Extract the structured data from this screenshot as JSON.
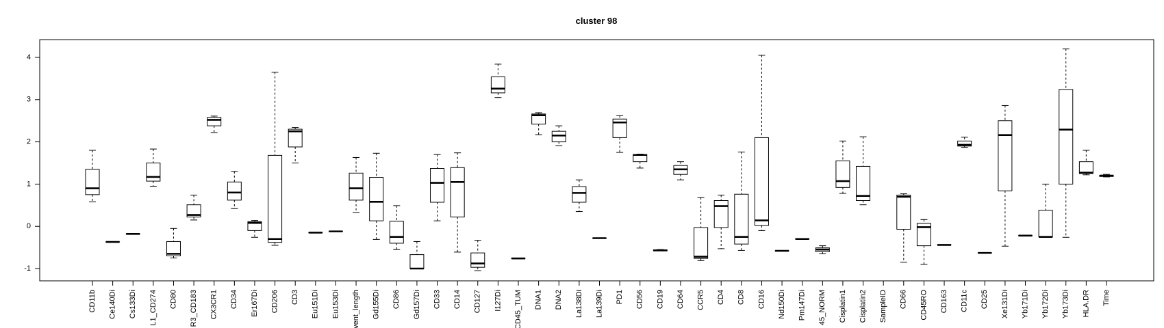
{
  "chart_data": {
    "type": "box",
    "title": "cluster 98",
    "xlabel": "",
    "ylabel": "",
    "ylim": [
      -1.25,
      4.3
    ],
    "yticks": [
      -1,
      0,
      1,
      2,
      3,
      4
    ],
    "grid": false,
    "legend": "none",
    "categories": [
      "CD11b",
      "Ce140Di",
      "Cs133Di",
      "L1_CD274",
      "CD80",
      "R3_CD183",
      "CX3CR1",
      "CD34",
      "Er167Di",
      "CD206",
      "CD3",
      "Eu151Di",
      "Eu153Di",
      "vent_length",
      "Gd155Di",
      "CD86",
      "Gd157Di",
      "CD33",
      "CD14",
      "CD127",
      "I127Di",
      "CD45_TUM",
      "DNA1",
      "DNA2",
      "La138Di",
      "La139Di",
      "PD1",
      "CD56",
      "CD19",
      "CD64",
      "CCR5",
      "CD4",
      "CD8",
      "CD16",
      "Nd150Di",
      "Pm147Di",
      "45_NORM",
      "Cisplatin1",
      "Cisplatin2",
      "SampleID",
      "CD66",
      "CD45RO",
      "CD163",
      "CD11c",
      "CD25",
      "Xe131Di",
      "Yb171Di",
      "Yb172Di",
      "Yb173Di",
      "HLA.DR",
      "Time"
    ],
    "boxes": [
      {
        "min": 0.58,
        "q1": 0.75,
        "median": 0.9,
        "q3": 1.35,
        "max": 1.8
      },
      {
        "min": -0.37,
        "q1": -0.37,
        "median": -0.37,
        "q3": -0.37,
        "max": -0.37
      },
      {
        "min": -0.18,
        "q1": -0.18,
        "median": -0.18,
        "q3": -0.18,
        "max": -0.18
      },
      {
        "min": 0.95,
        "q1": 1.07,
        "median": 1.17,
        "q3": 1.5,
        "max": 1.83
      },
      {
        "min": -0.75,
        "q1": -0.7,
        "median": -0.65,
        "q3": -0.36,
        "max": -0.05
      },
      {
        "min": 0.15,
        "q1": 0.22,
        "median": 0.27,
        "q3": 0.51,
        "max": 0.74
      },
      {
        "min": 2.22,
        "q1": 2.38,
        "median": 2.52,
        "q3": 2.58,
        "max": 2.61
      },
      {
        "min": 0.42,
        "q1": 0.62,
        "median": 0.8,
        "q3": 1.05,
        "max": 1.3
      },
      {
        "min": -0.26,
        "q1": -0.1,
        "median": 0.08,
        "q3": 0.11,
        "max": 0.14
      },
      {
        "min": -0.45,
        "q1": -0.38,
        "median": -0.3,
        "q3": 1.68,
        "max": 3.65
      },
      {
        "min": 1.5,
        "q1": 1.88,
        "median": 2.25,
        "q3": 2.3,
        "max": 2.34
      },
      {
        "min": -0.15,
        "q1": -0.15,
        "median": -0.15,
        "q3": -0.15,
        "max": -0.15
      },
      {
        "min": -0.12,
        "q1": -0.12,
        "median": -0.12,
        "q3": -0.12,
        "max": -0.12
      },
      {
        "min": 0.33,
        "q1": 0.62,
        "median": 0.9,
        "q3": 1.26,
        "max": 1.63
      },
      {
        "min": -0.31,
        "q1": 0.13,
        "median": 0.58,
        "q3": 1.16,
        "max": 1.73
      },
      {
        "min": -0.55,
        "q1": -0.4,
        "median": -0.25,
        "q3": 0.12,
        "max": 0.49
      },
      {
        "min": -1.0,
        "q1": -1.0,
        "median": -1.0,
        "q3": -0.67,
        "max": -0.36
      },
      {
        "min": 0.13,
        "q1": 0.57,
        "median": 1.03,
        "q3": 1.37,
        "max": 1.7
      },
      {
        "min": -0.61,
        "q1": 0.22,
        "median": 1.05,
        "q3": 1.39,
        "max": 1.74
      },
      {
        "min": -1.05,
        "q1": -0.97,
        "median": -0.88,
        "q3": -0.63,
        "max": -0.33
      },
      {
        "min": 3.05,
        "q1": 3.16,
        "median": 3.26,
        "q3": 3.54,
        "max": 3.84
      },
      {
        "min": -0.76,
        "q1": -0.76,
        "median": -0.76,
        "q3": -0.76,
        "max": -0.76
      },
      {
        "min": 2.17,
        "q1": 2.42,
        "median": 2.63,
        "q3": 2.66,
        "max": 2.69
      },
      {
        "min": 1.91,
        "q1": 2.0,
        "median": 2.15,
        "q3": 2.25,
        "max": 2.38
      },
      {
        "min": 0.35,
        "q1": 0.57,
        "median": 0.79,
        "q3": 0.94,
        "max": 1.1
      },
      {
        "min": -0.28,
        "q1": -0.28,
        "median": -0.28,
        "q3": -0.28,
        "max": -0.28
      },
      {
        "min": 1.75,
        "q1": 2.1,
        "median": 2.46,
        "q3": 2.54,
        "max": 2.62
      },
      {
        "min": 1.38,
        "q1": 1.53,
        "median": 1.69,
        "q3": 1.7,
        "max": 1.71
      },
      {
        "min": -0.58,
        "q1": -0.58,
        "median": -0.57,
        "q3": -0.56,
        "max": -0.55
      },
      {
        "min": 1.1,
        "q1": 1.23,
        "median": 1.35,
        "q3": 1.44,
        "max": 1.53
      },
      {
        "min": -0.81,
        "q1": -0.76,
        "median": -0.72,
        "q3": -0.03,
        "max": 0.68
      },
      {
        "min": -0.53,
        "q1": -0.03,
        "median": 0.48,
        "q3": 0.61,
        "max": 0.74
      },
      {
        "min": -0.57,
        "q1": -0.42,
        "median": -0.25,
        "q3": 0.76,
        "max": 1.76
      },
      {
        "min": -0.1,
        "q1": 0.02,
        "median": 0.14,
        "q3": 2.1,
        "max": 4.05
      },
      {
        "min": -0.58,
        "q1": -0.58,
        "median": -0.58,
        "q3": -0.58,
        "max": -0.58
      },
      {
        "min": -0.3,
        "q1": -0.3,
        "median": -0.3,
        "q3": -0.3,
        "max": -0.3
      },
      {
        "min": -0.65,
        "q1": -0.6,
        "median": -0.55,
        "q3": -0.51,
        "max": -0.46
      },
      {
        "min": 0.78,
        "q1": 0.92,
        "median": 1.07,
        "q3": 1.55,
        "max": 2.02
      },
      {
        "min": 0.51,
        "q1": 0.61,
        "median": 0.72,
        "q3": 1.42,
        "max": 2.12
      },
      {
        "min": null,
        "q1": null,
        "median": null,
        "q3": null,
        "max": null
      },
      {
        "min": -0.85,
        "q1": -0.07,
        "median": 0.7,
        "q3": 0.74,
        "max": 0.77
      },
      {
        "min": -0.9,
        "q1": -0.46,
        "median": -0.02,
        "q3": 0.07,
        "max": 0.16
      },
      {
        "min": -0.44,
        "q1": -0.44,
        "median": -0.44,
        "q3": -0.44,
        "max": -0.44
      },
      {
        "min": 1.87,
        "q1": 1.9,
        "median": 1.93,
        "q3": 2.02,
        "max": 2.11
      },
      {
        "min": -0.63,
        "q1": -0.63,
        "median": -0.63,
        "q3": -0.63,
        "max": -0.63
      },
      {
        "min": -0.47,
        "q1": 0.84,
        "median": 2.16,
        "q3": 2.5,
        "max": 2.86
      },
      {
        "min": -0.22,
        "q1": -0.22,
        "median": -0.22,
        "q3": -0.22,
        "max": -0.22
      },
      {
        "min": -0.25,
        "q1": -0.25,
        "median": -0.25,
        "q3": 0.38,
        "max": 1.0
      },
      {
        "min": -0.26,
        "q1": 1.0,
        "median": 2.29,
        "q3": 3.24,
        "max": 4.2
      },
      {
        "min": 1.22,
        "q1": 1.25,
        "median": 1.27,
        "q3": 1.53,
        "max": 1.8
      },
      {
        "min": 1.17,
        "q1": 1.18,
        "median": 1.2,
        "q3": 1.21,
        "max": 1.23
      }
    ]
  }
}
